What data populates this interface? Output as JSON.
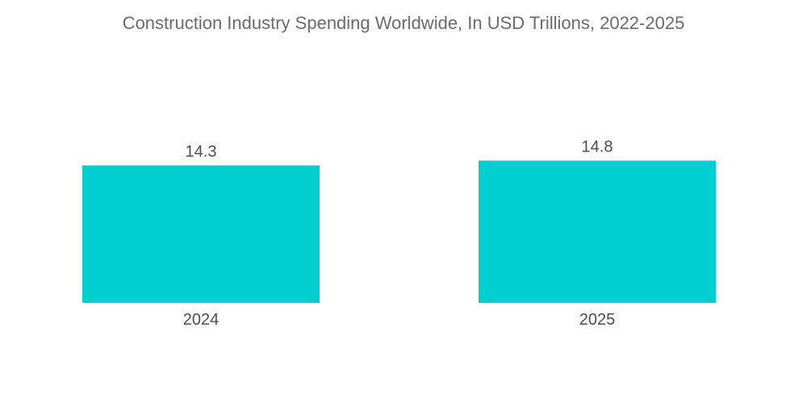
{
  "chart_data": {
    "type": "bar",
    "title": "Construction Industry Spending Worldwide, In USD Trillions, 2022-2025",
    "categories": [
      "2024",
      "2025"
    ],
    "values": [
      14.3,
      14.8
    ],
    "value_labels": [
      "14.3",
      "14.8"
    ],
    "xlabel": "",
    "ylabel": "",
    "ylim": [
      0,
      15
    ],
    "grid": false,
    "legend": "none",
    "bar_color": "#00CED1"
  }
}
